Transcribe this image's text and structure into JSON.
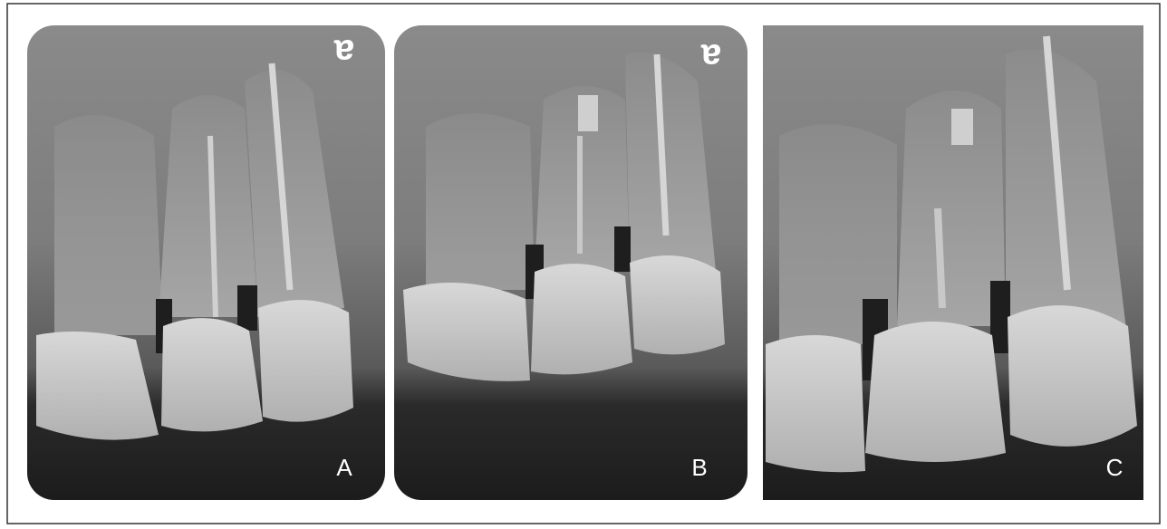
{
  "panels": [
    {
      "label": "A",
      "marker": "a"
    },
    {
      "label": "B",
      "marker": "a"
    },
    {
      "label": "C"
    }
  ]
}
